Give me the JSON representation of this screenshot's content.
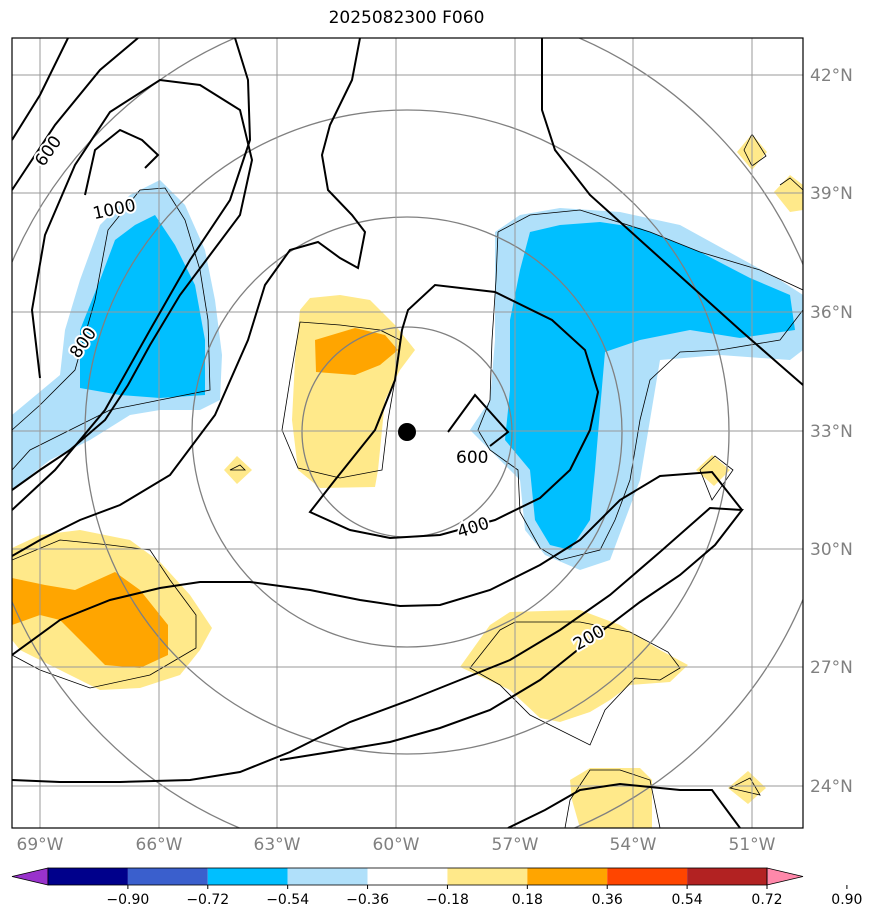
{
  "title": "2025082300 F060",
  "lat_labels": [
    "42°N",
    "39°N",
    "36°N",
    "33°N",
    "30°N",
    "27°N",
    "24°N"
  ],
  "lon_labels": [
    "69°W",
    "66°W",
    "63°W",
    "60°W",
    "57°W",
    "54°W",
    "51°W"
  ],
  "contour_labels": [
    "600",
    "1000",
    "800",
    "600",
    "400",
    "200"
  ],
  "colorbar": {
    "ticks": [
      "−0.90",
      "−0.72",
      "−0.54",
      "−0.36",
      "−0.18",
      "0.18",
      "0.36",
      "0.54",
      "0.72",
      "0.90"
    ],
    "colors": [
      "#9932cc",
      "#00008b",
      "#3a5fcd",
      "#00bfff",
      "#b0e0fa",
      "#ffffff",
      "#ffe98a",
      "#ffa500",
      "#ff4500",
      "#b22222",
      "#ff88aa"
    ]
  },
  "colors": {
    "light_blue": "#b0e0fa",
    "deep_sky_blue": "#00bfff",
    "light_yellow": "#ffe98a",
    "orange": "#ffa500",
    "grid": "#999999",
    "range_rings": "#808080",
    "contour": "#000000",
    "lat_lon_label": "#808080"
  },
  "center_marker": {
    "lat": 33.0,
    "lon": -59.8
  }
}
